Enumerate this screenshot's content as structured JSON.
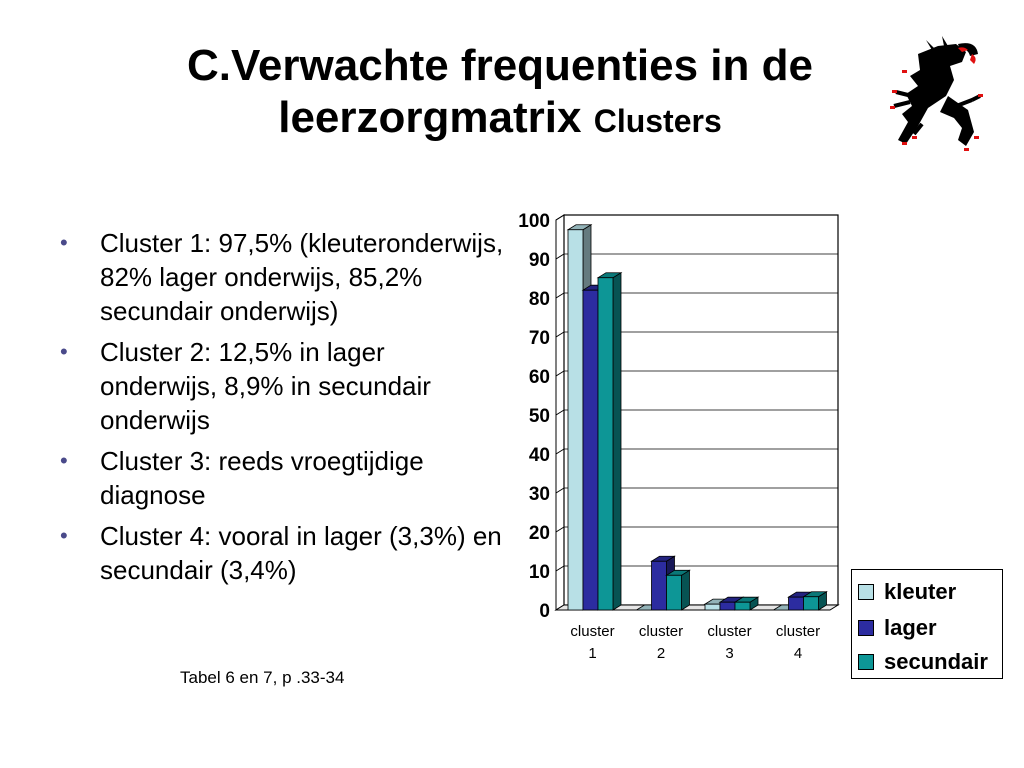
{
  "slide": {
    "title_main": "C.Verwachte frequenties in de leerzorgmatrix",
    "title_sub": "Clusters",
    "bullets": [
      "Cluster 1: 97,5% (kleuteronderwijs, 82% lager onderwijs, 85,2% secundair onderwijs)",
      "Cluster 2: 12,5% in lager onderwijs, 8,9% in secundair onderwijs",
      "Cluster 3: reeds vroegtijdige diagnose",
      "Cluster 4: vooral in lager (3,3%) en secundair (3,4%)"
    ],
    "source": "Tabel 6 en 7, p .33-34",
    "bullet_color": "#4a4a8a",
    "logo_icon": "flemish-lion-logo-icon"
  },
  "chart_data": {
    "type": "bar",
    "categories": [
      [
        "cluster",
        "1"
      ],
      [
        "cluster",
        "2"
      ],
      [
        "cluster",
        "3"
      ],
      [
        "cluster",
        "4"
      ]
    ],
    "series": [
      {
        "name": "kleuter",
        "values": [
          97.5,
          0,
          1.5,
          0
        ],
        "color": "#b8e0e6"
      },
      {
        "name": "lager",
        "values": [
          82,
          12.5,
          2,
          3.3
        ],
        "color": "#2c2ca0"
      },
      {
        "name": "secundair",
        "values": [
          85.2,
          8.9,
          2,
          3.4
        ],
        "color": "#0d9696"
      }
    ],
    "y_ticks": [
      "0",
      "10",
      "20",
      "30",
      "40",
      "50",
      "60",
      "70",
      "80",
      "90",
      "100"
    ],
    "ylim": [
      0,
      100
    ],
    "style": "3d-clustered-column",
    "legend_position": "right-bottom"
  }
}
